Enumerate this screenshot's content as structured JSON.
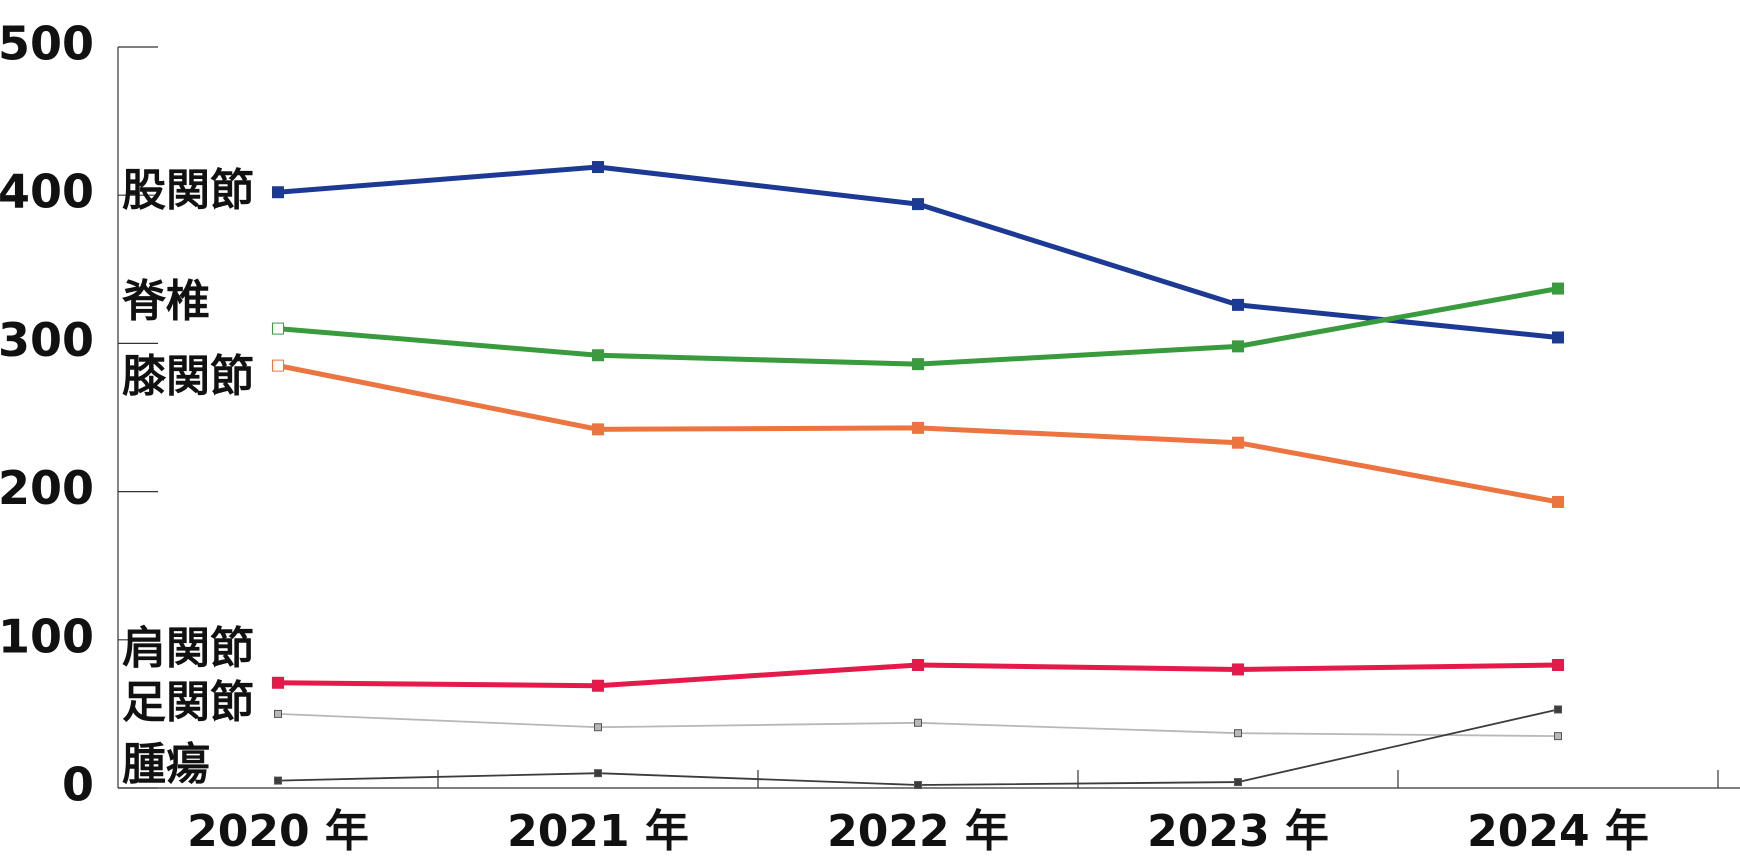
{
  "chart_data": {
    "type": "line",
    "categories": [
      "2020 年",
      "2021 年",
      "2022 年",
      "2023 年",
      "2024 年"
    ],
    "series": [
      {
        "name": "股関節",
        "color": "#1c3a94",
        "values": [
          402,
          419,
          394,
          326,
          304
        ]
      },
      {
        "name": "脊椎",
        "color": "#3a9a3e",
        "values": [
          310,
          292,
          286,
          298,
          337
        ]
      },
      {
        "name": "膝関節",
        "color": "#ec7440",
        "values": [
          285,
          242,
          243,
          233,
          193
        ]
      },
      {
        "name": "肩関節",
        "color": "#e5194a",
        "values": [
          71,
          69,
          83,
          80,
          83
        ]
      },
      {
        "name": "足関節",
        "color": "#b8b8b8",
        "values": [
          50,
          41,
          44,
          37,
          35
        ]
      },
      {
        "name": "腫瘍",
        "color": "#3c3c3c",
        "values": [
          5,
          10,
          2,
          4,
          53
        ]
      }
    ],
    "ylim": [
      0,
      500
    ],
    "yticks": [
      0,
      100,
      200,
      300,
      400,
      500
    ]
  }
}
